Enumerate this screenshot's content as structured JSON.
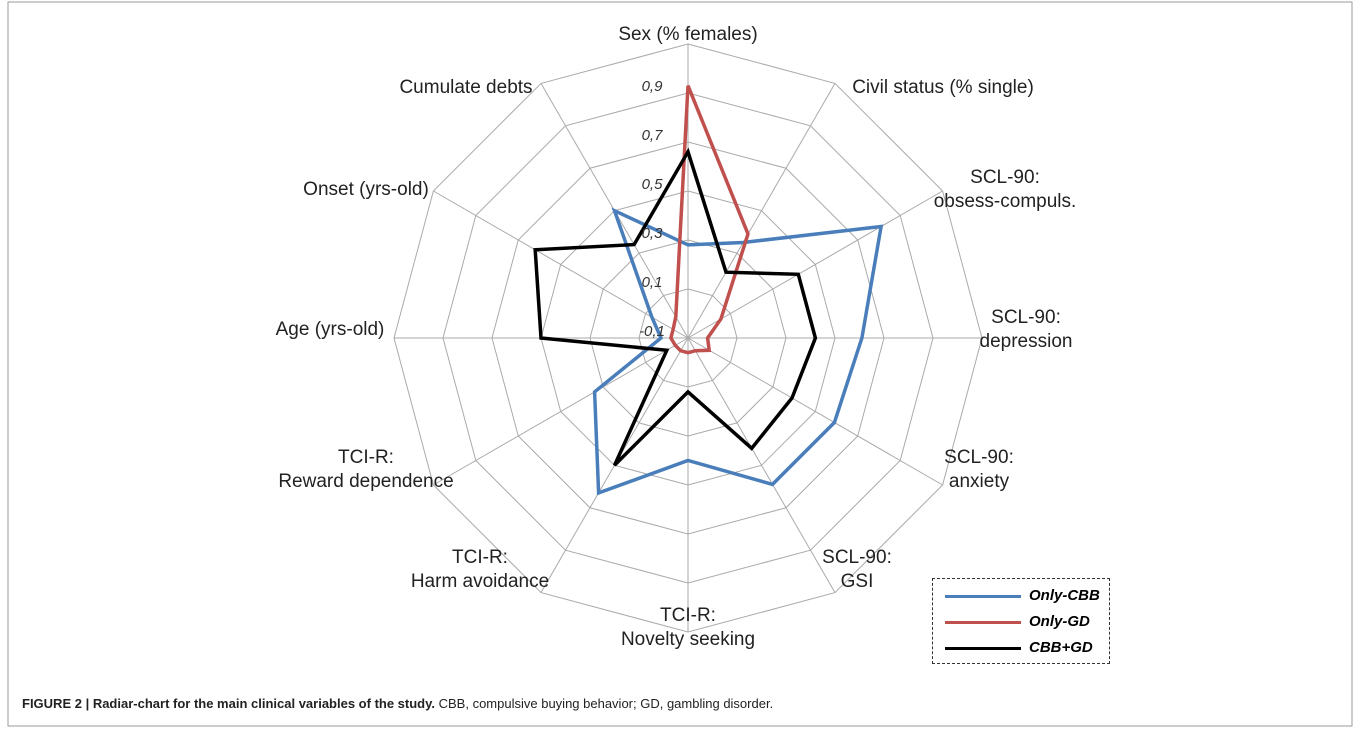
{
  "chart_data": {
    "type": "radar",
    "caption_bold": "FIGURE 2 | Radiar-chart for the main clinical variables of the study.",
    "caption": "CBB, compulsive buying behavior; GD, gambling disorder.",
    "categories": [
      "Sex (% females)",
      "Civil status  (% single)",
      "SCL-90:\nobsess-compuls.",
      "SCL-90:\ndepression",
      "SCL-90:\nanxiety",
      "SCL-90:\nGSI",
      "TCI-R:\nNovelty seeking",
      "TCI-R:\nHarm avoidance",
      "TCI-R:\nReward dependence",
      "Age (yrs-old)",
      "Onset (yrs-old)",
      "Cumulate debts"
    ],
    "ylim": [
      -0.1,
      1.1
    ],
    "yticks": [
      {
        "value": -0.1,
        "label": "-0,1"
      },
      {
        "value": 0.1,
        "label": "0,1"
      },
      {
        "value": 0.3,
        "label": "0,3"
      },
      {
        "value": 0.5,
        "label": "0,5"
      },
      {
        "value": 0.7,
        "label": "0,7"
      },
      {
        "value": 0.9,
        "label": "0,9"
      }
    ],
    "grid": true,
    "series": [
      {
        "name": "Only-CBB",
        "color": "#4a7ebb",
        "values": [
          0.28,
          0.35,
          0.81,
          0.61,
          0.59,
          0.59,
          0.4,
          0.63,
          0.34,
          0.01,
          0.07,
          0.5
        ]
      },
      {
        "name": "Only-GD",
        "color": "#c0504d",
        "values": [
          0.93,
          0.39,
          0.055,
          -0.02,
          0.0,
          -0.04,
          -0.04,
          -0.04,
          -0.04,
          -0.03,
          -0.03,
          0.0
        ]
      },
      {
        "name": "CBB+GD",
        "color": "#000000",
        "values": [
          0.66,
          0.21,
          0.42,
          0.42,
          0.39,
          0.42,
          0.12,
          0.5,
          0.0,
          0.5,
          0.62,
          0.34
        ]
      }
    ]
  }
}
